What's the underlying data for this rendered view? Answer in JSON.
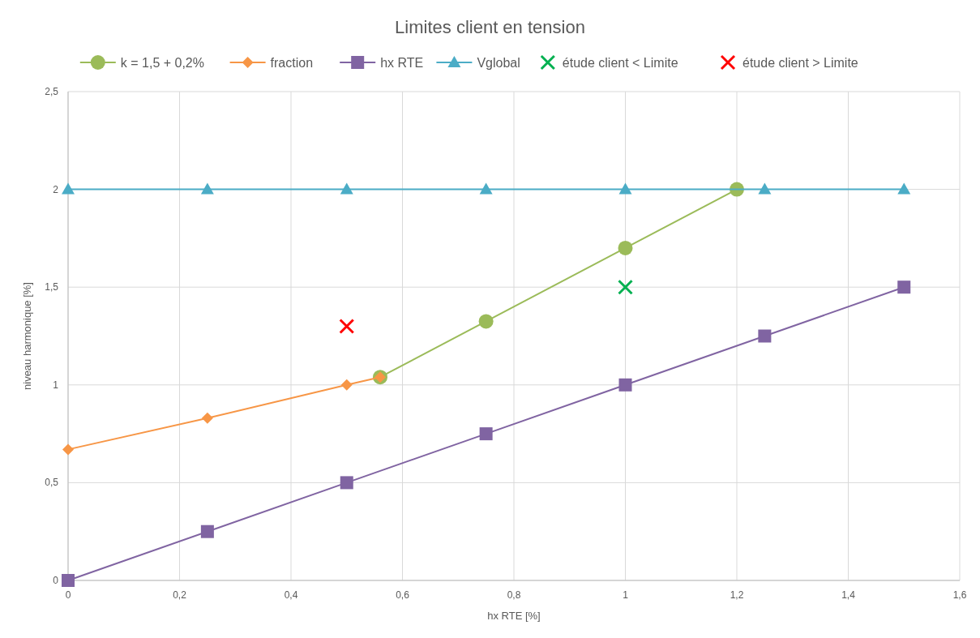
{
  "chart_data": {
    "type": "line",
    "title": "Limites client en tension",
    "xlabel": "hx RTE [%]",
    "ylabel": "niveau harmonique [%]",
    "xlim": [
      0,
      1.6
    ],
    "xticks": [
      0,
      {
        "value": 0.2,
        "label": "0,2"
      },
      {
        "value": 0.4,
        "label": "0,4"
      },
      {
        "value": 0.6,
        "label": "0,6"
      },
      {
        "value": 0.8,
        "label": "0,8"
      },
      1,
      {
        "value": 1.2,
        "label": "1,2"
      },
      {
        "value": 1.4,
        "label": "1,4"
      },
      {
        "value": 1.6,
        "label": "1,6"
      }
    ],
    "ylim": [
      0,
      2.5
    ],
    "yticks": [
      0,
      {
        "value": 0.5,
        "label": "0,5"
      },
      1,
      {
        "value": 1.5,
        "label": "1,5"
      },
      2,
      {
        "value": 2.5,
        "label": "2,5"
      }
    ],
    "grid": true,
    "legend": "top",
    "series": [
      {
        "name": "k = 1,5 + 0,2%",
        "color": "#9bbb59",
        "marker": "circle",
        "x": [
          0.56,
          0.75,
          1,
          1.2
        ],
        "values": [
          1.04,
          1.325,
          1.7,
          2.0
        ]
      },
      {
        "name": "fraction",
        "color": "#f79646",
        "marker": "diamond",
        "x": [
          0,
          0.25,
          0.5,
          0.56
        ],
        "values": [
          0.67,
          0.83,
          1.0,
          1.04
        ]
      },
      {
        "name": "hx RTE",
        "color": "#8064a2",
        "marker": "square",
        "x": [
          0,
          0.25,
          0.5,
          0.75,
          1,
          1.25,
          1.5
        ],
        "values": [
          0,
          0.25,
          0.5,
          0.75,
          1,
          1.25,
          1.5
        ]
      },
      {
        "name": "Vglobal",
        "color": "#4bacc6",
        "marker": "triangle",
        "x": [
          0,
          0.25,
          0.5,
          0.75,
          1,
          1.25,
          1.5
        ],
        "values": [
          2,
          2,
          2,
          2,
          2,
          2,
          2
        ]
      },
      {
        "name": "étude client < Limite",
        "type": "scatter",
        "color": "#00b050",
        "marker": "cross",
        "x": [
          1
        ],
        "values": [
          1.5
        ]
      },
      {
        "name": "étude client > Limite",
        "type": "scatter",
        "color": "#ff0000",
        "marker": "cross",
        "x": [
          0.5
        ],
        "values": [
          1.3
        ]
      }
    ]
  }
}
